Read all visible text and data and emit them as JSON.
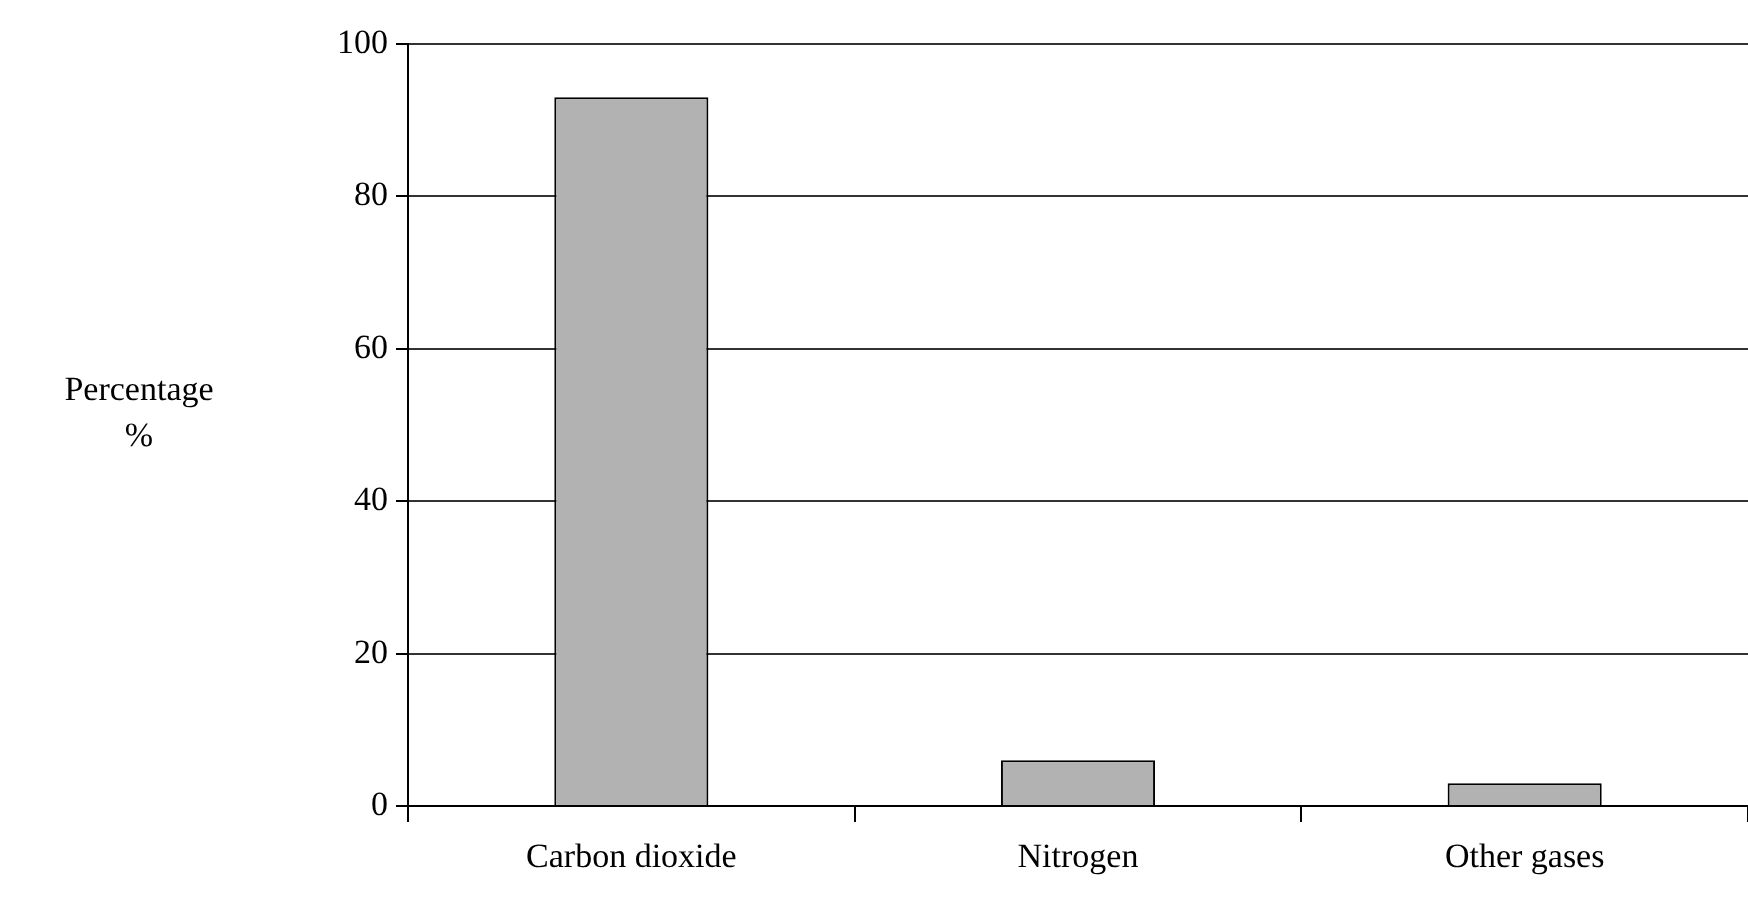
{
  "chart_data": {
    "type": "bar",
    "ylabel": "Percentage %",
    "categories": [
      "Carbon dioxide",
      "Nitrogen",
      "Other gases"
    ],
    "values": [
      93,
      6,
      3
    ],
    "color": "#b2b2b2",
    "ylim": [
      0,
      100
    ],
    "yticks": [
      0,
      20,
      40,
      60,
      80,
      100
    ],
    "grid": "y",
    "legend": false
  }
}
